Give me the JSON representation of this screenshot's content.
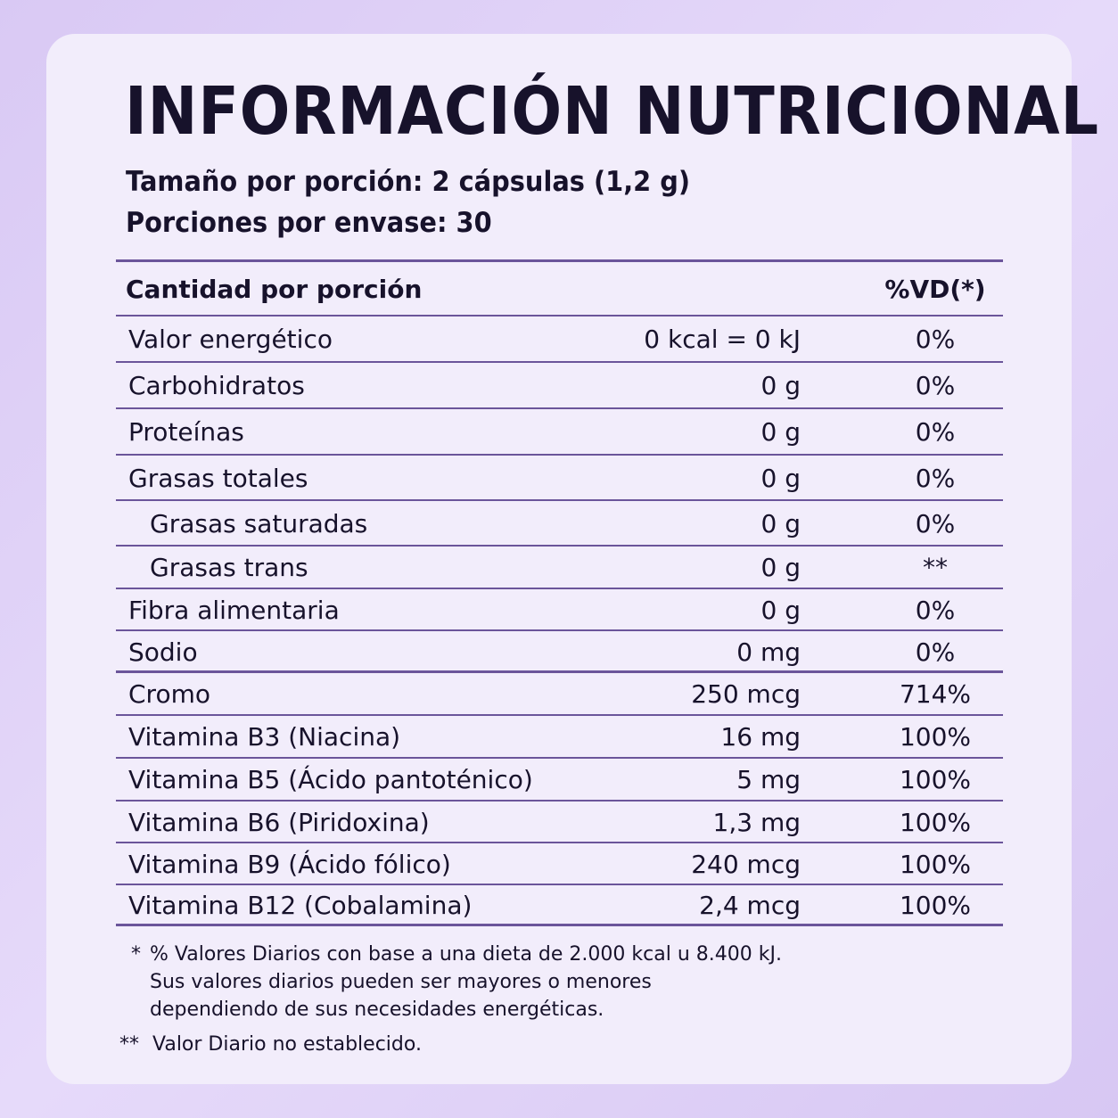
{
  "title": "INFORMACIÓN NUTRICIONAL",
  "serving_size": "Tamaño por porción: 2 cápsulas (1,2 g)",
  "servings_per_container": "Porciones por envase: 30",
  "table": {
    "header": [
      "Cantidad por porción",
      "%VD(*)"
    ],
    "rows": [
      [
        "Valor energético",
        "0 kcal = 0 kJ",
        "0%"
      ],
      [
        "Carbohidratos",
        "0 g",
        "0%"
      ],
      [
        "Proteínas",
        "0 g",
        "0%"
      ],
      [
        "Grasas totales",
        "0 g",
        "0%"
      ],
      [
        "Grasas saturadas",
        "0 g",
        "0%"
      ],
      [
        "Grasas trans",
        "0 g",
        "**"
      ],
      [
        "Fibra alimentaria",
        "0 g",
        "0%"
      ],
      [
        "Sodio",
        "0 mg",
        "0%"
      ],
      [
        "Cromo",
        "250 mcg",
        "714%"
      ],
      [
        "Vitamina B3 (Niacina)",
        "16 mg",
        "100%"
      ],
      [
        "Vitamina B5 (Ácido pantoténico)",
        "5 mg",
        "100%"
      ],
      [
        "Vitamina B6 (Piridoxina)",
        "1,3 mg",
        "100%"
      ],
      [
        "Vitamina B9 (Ácido fólico)",
        "240 mcg",
        "100%"
      ],
      [
        "Vitamina B12 (Cobalamina)",
        "2,4 mcg",
        "100%"
      ]
    ]
  },
  "footnotes": [
    {
      "marker": "*",
      "lines": [
        "% Valores Diarios con base a una dieta de 2.000 kcal u 8.400 kJ.",
        "Sus valores diarios pueden ser mayores o menores",
        "dependiendo de sus necesidades energéticas."
      ]
    },
    {
      "marker": "**",
      "lines": [
        "Valor Diario no establecido."
      ]
    }
  ]
}
